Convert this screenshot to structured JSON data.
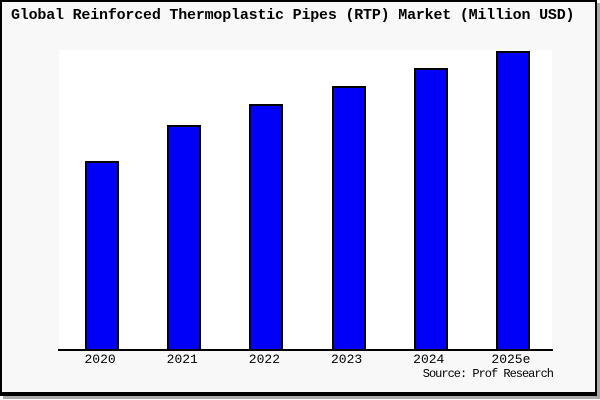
{
  "window": {
    "background_color": "#f8f8f8",
    "plot_background_color": "#ffffff",
    "frame_border_color": "#000000",
    "frame_shadow_color": "#aaaaaa"
  },
  "title": "Global Reinforced Thermoplastic Pipes (RTP) Market (Million USD)",
  "source_note": "Source: Prof Research",
  "chart_data": {
    "type": "bar",
    "title": "Global Reinforced Thermoplastic Pipes (RTP) Market (Million USD)",
    "categories": [
      "2020",
      "2021",
      "2022",
      "2023",
      "2024",
      "2025e"
    ],
    "values": [
      63,
      75,
      82,
      88,
      94,
      100
    ],
    "value_scale": "relative index; no y-axis tick labels are shown in the image (2025e bar = 100)",
    "xlabel": "",
    "ylabel": "",
    "ylim": [
      0,
      100.5
    ],
    "grid": false,
    "legend": false,
    "bar_color": "#0000fa",
    "bar_edge_color": "#000000",
    "source_note": "Source: Prof Research"
  }
}
